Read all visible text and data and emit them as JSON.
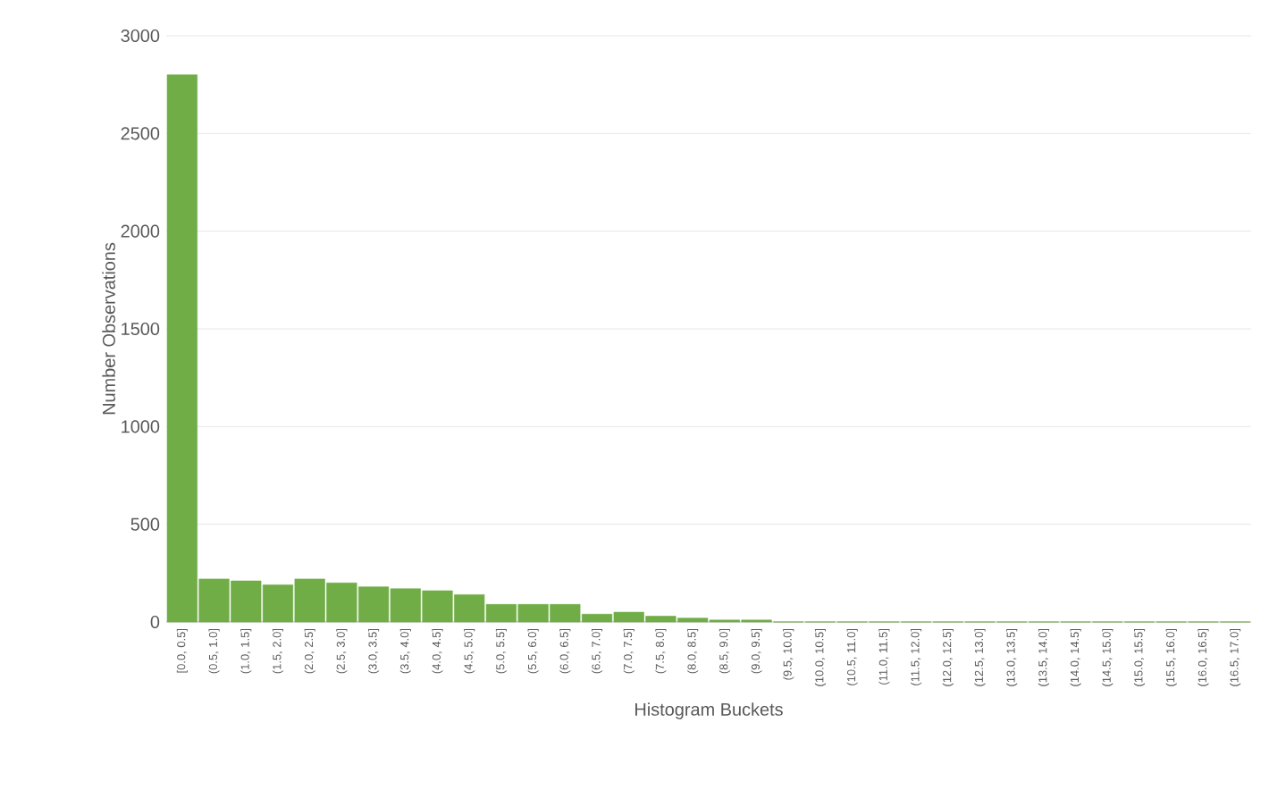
{
  "chart_data": {
    "type": "bar",
    "xlabel": "Histogram Buckets",
    "ylabel": "Number Observations",
    "categories": [
      "[0.0, 0.5]",
      "(0.5, 1.0]",
      "(1.0, 1.5]",
      "(1.5, 2.0]",
      "(2.0, 2.5]",
      "(2.5, 3.0]",
      "(3.0, 3.5]",
      "(3.5, 4.0]",
      "(4.0, 4.5]",
      "(4.5, 5.0]",
      "(5.0, 5.5]",
      "(5.5, 6.0]",
      "(6.0, 6.5]",
      "(6.5, 7.0]",
      "(7.0, 7.5]",
      "(7.5, 8.0]",
      "(8.0, 8.5]",
      "(8.5, 9.0]",
      "(9.0, 9.5]",
      "(9.5, 10.0]",
      "(10.0, 10.5]",
      "(10.5, 11.0]",
      "(11.0, 11.5]",
      "(11.5, 12.0]",
      "(12.0, 12.5]",
      "(12.5, 13.0]",
      "(13.0, 13.5]",
      "(13.5, 14.0]",
      "(14.0, 14.5]",
      "(14.5, 15.0]",
      "(15.0, 15.5]",
      "(15.5, 16.0]",
      "(16.0, 16.5]",
      "(16.5, 17.0]"
    ],
    "values": [
      2800,
      220,
      210,
      190,
      220,
      200,
      180,
      170,
      160,
      140,
      90,
      90,
      90,
      40,
      50,
      30,
      20,
      10,
      10,
      0,
      0,
      0,
      0,
      0,
      0,
      0,
      0,
      0,
      0,
      0,
      0,
      0,
      0,
      0
    ],
    "color": "#70ad47",
    "ylim": [
      0,
      3000
    ],
    "yticks": [
      0,
      500,
      1000,
      1500,
      2000,
      2500,
      3000
    ],
    "grid": "y"
  }
}
